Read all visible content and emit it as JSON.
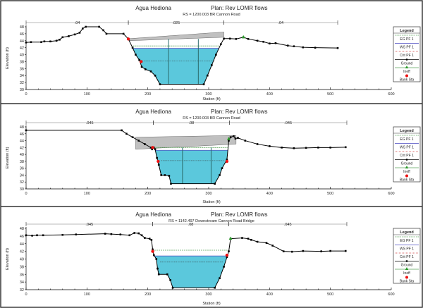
{
  "chart_data": [
    {
      "type": "line",
      "river": "Agua Hediona",
      "plan": "Plan: Rev LOMR flows",
      "rs": "RS = 1200.003 BR  Cannon Road",
      "xlabel": "Station (ft)",
      "ylabel": "Elevation (ft)",
      "xlim": [
        0,
        600
      ],
      "ylim": [
        30,
        48
      ],
      "xticks": [
        "0",
        "100",
        "200",
        "300",
        "400",
        "500",
        "600"
      ],
      "yticks": [
        "30",
        "32",
        "34",
        "36",
        "38",
        "40",
        "42",
        "44",
        "46",
        "48"
      ],
      "ground": [
        [
          0,
          43.5
        ],
        [
          8,
          43.6
        ],
        [
          25,
          43.6
        ],
        [
          30,
          43.8
        ],
        [
          40,
          43.8
        ],
        [
          50,
          44
        ],
        [
          55,
          44.3
        ],
        [
          60,
          45
        ],
        [
          70,
          45.3
        ],
        [
          80,
          45.8
        ],
        [
          88,
          46.3
        ],
        [
          93,
          47.5
        ],
        [
          98,
          48
        ],
        [
          120,
          48
        ],
        [
          127,
          47
        ],
        [
          132,
          46
        ],
        [
          160,
          46
        ],
        [
          168,
          44.5
        ],
        [
          175,
          42
        ],
        [
          180,
          40
        ],
        [
          186,
          38.5
        ],
        [
          190,
          36.5
        ],
        [
          196,
          35.8
        ],
        [
          205,
          35.2
        ],
        [
          212,
          34
        ],
        [
          220,
          31.5
        ],
        [
          292,
          31.5
        ],
        [
          298,
          34
        ],
        [
          305,
          37
        ],
        [
          312,
          40
        ],
        [
          320,
          43
        ],
        [
          325,
          44.6
        ],
        [
          335,
          44.6
        ],
        [
          345,
          44.5
        ],
        [
          357,
          45
        ],
        [
          365,
          44.5
        ],
        [
          380,
          44
        ],
        [
          390,
          43.7
        ],
        [
          400,
          43.2
        ],
        [
          410,
          43.3
        ],
        [
          430,
          42.6
        ],
        [
          440,
          42.4
        ],
        [
          455,
          42.1
        ],
        [
          475,
          42
        ],
        [
          512,
          41.9
        ]
      ],
      "ws": 41.8,
      "eg": 42.5,
      "crit": 38.2,
      "deck": {
        "stations": [
          170,
          325
        ],
        "low_chord": [
          44,
          45
        ],
        "high_chord": [
          44.6,
          46.5
        ]
      },
      "piers": [
        234,
        283
      ],
      "bank_sta": [
        [
          168,
          44.5
        ],
        [
          189,
          38
        ]
      ],
      "ineff": [
        [
          357,
          45
        ]
      ],
      "mannings": [
        {
          "label": ".04",
          "from": 0,
          "to": 168
        },
        {
          "label": ".025",
          "from": 168,
          "to": 325
        },
        {
          "label": ".04",
          "from": 325,
          "to": 512
        }
      ]
    },
    {
      "type": "line",
      "river": "Agua Hediona",
      "plan": "Plan: Rev LOMR flows",
      "rs": "RS = 1200.003 BR  Cannon Road",
      "xlabel": "Station (ft)",
      "ylabel": "Elevation (ft)",
      "xlim": [
        0,
        600
      ],
      "ylim": [
        30,
        48
      ],
      "xticks": [
        "0",
        "100",
        "200",
        "300",
        "400",
        "500",
        "600"
      ],
      "yticks": [
        "30",
        "32",
        "34",
        "36",
        "38",
        "40",
        "42",
        "44",
        "46",
        "48"
      ],
      "ground": [
        [
          0,
          47
        ],
        [
          157,
          47
        ],
        [
          165,
          46
        ],
        [
          175,
          45
        ],
        [
          185,
          44
        ],
        [
          195,
          43
        ],
        [
          205,
          42
        ],
        [
          207,
          41.5
        ],
        [
          210,
          42
        ],
        [
          212,
          41.5
        ],
        [
          215,
          39
        ],
        [
          218,
          37
        ],
        [
          222,
          34
        ],
        [
          228,
          34
        ],
        [
          235,
          33.8
        ],
        [
          238,
          31.5
        ],
        [
          310,
          31.5
        ],
        [
          318,
          34
        ],
        [
          322,
          36
        ],
        [
          330,
          38.5
        ],
        [
          333,
          44
        ],
        [
          336,
          45
        ],
        [
          341,
          45.3
        ],
        [
          344,
          44.6
        ],
        [
          348,
          44.8
        ],
        [
          360,
          44
        ],
        [
          380,
          43
        ],
        [
          400,
          42.4
        ],
        [
          420,
          42
        ],
        [
          440,
          41.8
        ],
        [
          460,
          41.9
        ],
        [
          480,
          42
        ],
        [
          500,
          42
        ],
        [
          525,
          42.1
        ]
      ],
      "ws": 41.2,
      "eg": 42,
      "crit": 38.2,
      "deck": {
        "stations": [
          180,
          345
        ],
        "low_chord": [
          41.5,
          43
        ],
        "high_chord": [
          45,
          45.5
        ]
      },
      "piers": [
        257,
        304
      ],
      "bank_sta": [
        [
          208,
          42
        ],
        [
          217,
          38
        ],
        [
          330,
          38
        ]
      ],
      "ineff": [
        [
          333,
          44.5
        ]
      ],
      "mannings": [
        {
          "label": ".045",
          "from": 0,
          "to": 209
        },
        {
          "label": ".08",
          "from": 209,
          "to": 334
        },
        {
          "label": ".045",
          "from": 334,
          "to": 527
        }
      ]
    },
    {
      "type": "line",
      "river": "Agua Hediona",
      "plan": "Plan: Rev LOMR flows",
      "rs": "RS = 1142.497  Downstream Cannon Road Bridge",
      "xlabel": "Station (ft)",
      "ylabel": "Elevation (ft)",
      "xlim": [
        0,
        600
      ],
      "ylim": [
        32,
        48
      ],
      "xticks": [
        "0",
        "100",
        "200",
        "300",
        "400",
        "500",
        "600"
      ],
      "yticks": [
        "32",
        "34",
        "36",
        "38",
        "40",
        "42",
        "44",
        "46",
        "48"
      ],
      "ground": [
        [
          0,
          46.2
        ],
        [
          10,
          46.1
        ],
        [
          18,
          46.2
        ],
        [
          28,
          46.2
        ],
        [
          60,
          46.3
        ],
        [
          82,
          46.4
        ],
        [
          130,
          46.6
        ],
        [
          140,
          46.5
        ],
        [
          155,
          46.4
        ],
        [
          170,
          46.2
        ],
        [
          178,
          46.8
        ],
        [
          185,
          46.7
        ],
        [
          190,
          46.2
        ],
        [
          195,
          45.5
        ],
        [
          203,
          45.3
        ],
        [
          206,
          45
        ],
        [
          208,
          42.5
        ],
        [
          210,
          41
        ],
        [
          214,
          40
        ],
        [
          216,
          37.5
        ],
        [
          218,
          36
        ],
        [
          232,
          36
        ],
        [
          237,
          34.5
        ],
        [
          241,
          32.5
        ],
        [
          310,
          32.5
        ],
        [
          318,
          35
        ],
        [
          325,
          38
        ],
        [
          330,
          40.5
        ],
        [
          333,
          42
        ],
        [
          336,
          45.3
        ],
        [
          355,
          45.5
        ],
        [
          365,
          45.3
        ],
        [
          370,
          45
        ],
        [
          380,
          44.5
        ],
        [
          395,
          44.2
        ],
        [
          405,
          43.5
        ],
        [
          423,
          42
        ],
        [
          437,
          41.9
        ],
        [
          455,
          42.1
        ],
        [
          485,
          42
        ],
        [
          500,
          42.1
        ],
        [
          525,
          42.1
        ]
      ],
      "ws": 40.8,
      "eg": 42.3,
      "crit": 39.2,
      "deck": null,
      "piers": [],
      "bank_sta": [
        [
          208,
          42
        ],
        [
          330,
          41
        ]
      ],
      "ineff": [
        [
          336,
          45.3
        ]
      ],
      "mannings": [
        {
          "label": ".045",
          "from": 0,
          "to": 208
        },
        {
          "label": ".08",
          "from": 208,
          "to": 333
        },
        {
          "label": ".045",
          "from": 333,
          "to": 527
        }
      ]
    }
  ],
  "legend": {
    "title": "Legend",
    "items": [
      "EG PF 1",
      "WS PF 1",
      "Crit PF 1",
      "Ground",
      "Ineff",
      "Bank Sta"
    ]
  },
  "colors": {
    "water": "#5bc8dc",
    "deck": "#c0c0c0",
    "eg": "#5aa35a",
    "ws": "#4a4ac0",
    "crit": "#d04040",
    "ground": "#000000",
    "ineff": "#2a9a2a",
    "bank": "#ee1111"
  }
}
